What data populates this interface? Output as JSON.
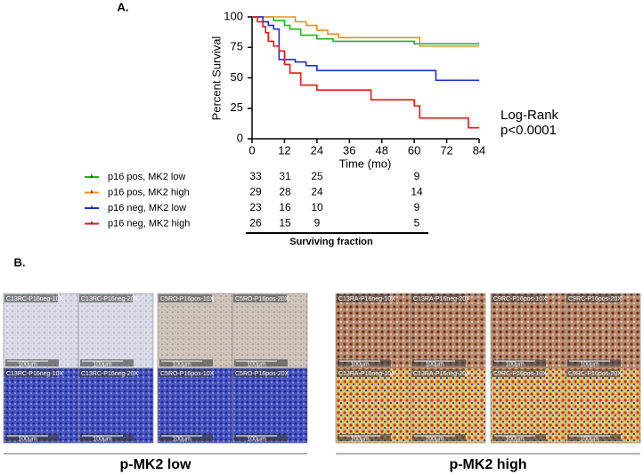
{
  "panel_a_label": "A.",
  "panel_b_label": "B.",
  "chart_data": {
    "type": "step",
    "x_label": "Time (mo)",
    "y_label": "Percent Survival",
    "xlim": [
      0,
      84
    ],
    "xticks": [
      0,
      12,
      24,
      36,
      48,
      60,
      72,
      84
    ],
    "ylim": [
      0,
      100
    ],
    "yticks": [
      0,
      25,
      50,
      75,
      100
    ],
    "annotations": [
      "Log-Rank",
      "p<0.0001"
    ],
    "series": [
      {
        "name": "p16 pos, MK2 low",
        "color": "#1fb51f",
        "x": [
          0,
          8,
          12,
          14,
          18,
          24,
          30,
          60,
          84
        ],
        "values": [
          100,
          97,
          93,
          90,
          85,
          82,
          80,
          78,
          78
        ],
        "at_risk": [
          33,
          31,
          25,
          9
        ]
      },
      {
        "name": "p16 pos, MK2 high",
        "color": "#f28c1c",
        "x": [
          0,
          14,
          16,
          20,
          24,
          28,
          32,
          62,
          84
        ],
        "values": [
          100,
          100,
          96,
          93,
          89,
          86,
          83,
          76,
          76
        ],
        "at_risk": [
          29,
          28,
          24,
          14
        ]
      },
      {
        "name": "p16 neg, MK2 low",
        "color": "#1a2fd6",
        "x": [
          0,
          4,
          6,
          8,
          10,
          16,
          20,
          24,
          68,
          84
        ],
        "values": [
          100,
          96,
          93,
          90,
          65,
          63,
          60,
          56,
          48,
          48
        ],
        "at_risk": [
          23,
          16,
          10,
          9
        ]
      },
      {
        "name": "p16 neg, MK2 high",
        "color": "#e81616",
        "x": [
          0,
          2,
          4,
          5,
          6,
          8,
          10,
          12,
          14,
          18,
          24,
          44,
          60,
          62,
          80,
          84
        ],
        "values": [
          100,
          96,
          92,
          87,
          80,
          76,
          72,
          61,
          54,
          44,
          40,
          32,
          27,
          17,
          9,
          9
        ],
        "at_risk": [
          26,
          15,
          9,
          5
        ]
      }
    ],
    "at_risk_label": "Surviving fraction"
  },
  "panel_b": {
    "scale_label": "100μm",
    "groups": [
      {
        "caption": "p-MK2 low",
        "tiles": [
          "C13RC-P16neg-10X",
          "C13RC-P16neg-20X",
          "C5RO-P16pos-10X",
          "C5RO-P16pos-20X"
        ]
      },
      {
        "caption": "p-MK2 high",
        "tiles": [
          "C13RA-P16neg-10X",
          "C13RA-P16neg-20X",
          "C9RC-P16pos-10X",
          "C9RC-P16pos-20X"
        ]
      }
    ]
  }
}
